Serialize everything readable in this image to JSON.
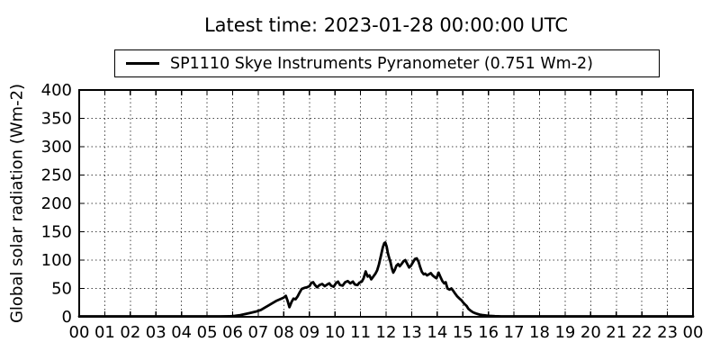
{
  "header": {
    "title": "Latest time: 2023-01-28 00:00:00 UTC"
  },
  "legend": {
    "label": "SP1110 Skye Instruments Pyranometer (0.751 Wm-2)",
    "line_color": "#000000",
    "position": "upper center, above axes"
  },
  "colors": {
    "background": "#ffffff",
    "text": "#000000",
    "line": "#000000",
    "grid": "#444444",
    "spine": "#000000"
  },
  "chart_data": {
    "type": "line",
    "title": "Latest time: 2023-01-28 00:00:00 UTC",
    "xlabel": "",
    "ylabel": "Global solar radiation (Wm-2)",
    "xlim": [
      0,
      24
    ],
    "ylim": [
      0,
      400
    ],
    "x_ticks": [
      0,
      1,
      2,
      3,
      4,
      5,
      6,
      7,
      8,
      9,
      10,
      11,
      12,
      13,
      14,
      15,
      16,
      17,
      18,
      19,
      20,
      21,
      22,
      23,
      24
    ],
    "x_tick_labels": [
      "00",
      "01",
      "02",
      "03",
      "04",
      "05",
      "06",
      "07",
      "08",
      "09",
      "10",
      "11",
      "12",
      "13",
      "14",
      "15",
      "16",
      "17",
      "18",
      "19",
      "20",
      "21",
      "22",
      "23",
      "00"
    ],
    "y_ticks": [
      0,
      50,
      100,
      150,
      200,
      250,
      300,
      350,
      400
    ],
    "grid": true,
    "grid_style": "dotted",
    "tick_direction": "in",
    "legend_position": "above plot, centered",
    "series": [
      {
        "name": "SP1110 Skye Instruments Pyranometer (0.751 Wm-2)",
        "latest_value_wm2": 0.751,
        "color": "#000000",
        "points_hour_value": [
          [
            0,
            0.75
          ],
          [
            0.5,
            0.75
          ],
          [
            1,
            0.75
          ],
          [
            1.5,
            0.75
          ],
          [
            2,
            0.75
          ],
          [
            2.5,
            0.75
          ],
          [
            3,
            0.75
          ],
          [
            3.5,
            0.75
          ],
          [
            4,
            0.75
          ],
          [
            4.5,
            0.75
          ],
          [
            5,
            0.75
          ],
          [
            5.5,
            0.8
          ],
          [
            5.9,
            1
          ],
          [
            6.1,
            1.8
          ],
          [
            6.3,
            3
          ],
          [
            6.5,
            5
          ],
          [
            6.7,
            7
          ],
          [
            6.9,
            9
          ],
          [
            7.1,
            12
          ],
          [
            7.25,
            16
          ],
          [
            7.4,
            20
          ],
          [
            7.55,
            24
          ],
          [
            7.7,
            28
          ],
          [
            7.85,
            31
          ],
          [
            8.0,
            34
          ],
          [
            8.08,
            37
          ],
          [
            8.15,
            28
          ],
          [
            8.22,
            17
          ],
          [
            8.3,
            26
          ],
          [
            8.38,
            32
          ],
          [
            8.46,
            31
          ],
          [
            8.54,
            36
          ],
          [
            8.62,
            43
          ],
          [
            8.7,
            49
          ],
          [
            8.8,
            51
          ],
          [
            8.9,
            52
          ],
          [
            9.0,
            54
          ],
          [
            9.08,
            60
          ],
          [
            9.15,
            61
          ],
          [
            9.22,
            56
          ],
          [
            9.3,
            52
          ],
          [
            9.4,
            56
          ],
          [
            9.5,
            58
          ],
          [
            9.6,
            54
          ],
          [
            9.7,
            57
          ],
          [
            9.78,
            59
          ],
          [
            9.85,
            55
          ],
          [
            9.95,
            53
          ],
          [
            10.05,
            60
          ],
          [
            10.12,
            62
          ],
          [
            10.2,
            56
          ],
          [
            10.3,
            55
          ],
          [
            10.4,
            61
          ],
          [
            10.5,
            63
          ],
          [
            10.6,
            59
          ],
          [
            10.7,
            62
          ],
          [
            10.78,
            57
          ],
          [
            10.88,
            56
          ],
          [
            10.95,
            60
          ],
          [
            11.05,
            62
          ],
          [
            11.12,
            68
          ],
          [
            11.2,
            80
          ],
          [
            11.28,
            71
          ],
          [
            11.35,
            73
          ],
          [
            11.42,
            66
          ],
          [
            11.5,
            71
          ],
          [
            11.58,
            76
          ],
          [
            11.65,
            82
          ],
          [
            11.72,
            92
          ],
          [
            11.8,
            108
          ],
          [
            11.87,
            122
          ],
          [
            11.93,
            130
          ],
          [
            11.97,
            131
          ],
          [
            12.02,
            124
          ],
          [
            12.07,
            112
          ],
          [
            12.12,
            104
          ],
          [
            12.17,
            97
          ],
          [
            12.22,
            86
          ],
          [
            12.28,
            78
          ],
          [
            12.34,
            83
          ],
          [
            12.4,
            90
          ],
          [
            12.47,
            93
          ],
          [
            12.53,
            89
          ],
          [
            12.6,
            93
          ],
          [
            12.68,
            98
          ],
          [
            12.75,
            100
          ],
          [
            12.82,
            94
          ],
          [
            12.9,
            87
          ],
          [
            12.97,
            90
          ],
          [
            13.05,
            96
          ],
          [
            13.13,
            102
          ],
          [
            13.2,
            103
          ],
          [
            13.27,
            97
          ],
          [
            13.33,
            88
          ],
          [
            13.4,
            79
          ],
          [
            13.47,
            75
          ],
          [
            13.53,
            76
          ],
          [
            13.6,
            73
          ],
          [
            13.67,
            75
          ],
          [
            13.75,
            77
          ],
          [
            13.82,
            73
          ],
          [
            13.9,
            70
          ],
          [
            13.97,
            68
          ],
          [
            14.05,
            78
          ],
          [
            14.12,
            71
          ],
          [
            14.2,
            63
          ],
          [
            14.27,
            59
          ],
          [
            14.33,
            61
          ],
          [
            14.4,
            50
          ],
          [
            14.48,
            48
          ],
          [
            14.55,
            50
          ],
          [
            14.62,
            46
          ],
          [
            14.7,
            41
          ],
          [
            14.78,
            36
          ],
          [
            14.87,
            32
          ],
          [
            14.95,
            29
          ],
          [
            15.02,
            25
          ],
          [
            15.08,
            22
          ],
          [
            15.15,
            19
          ],
          [
            15.22,
            14
          ],
          [
            15.3,
            11
          ],
          [
            15.4,
            8
          ],
          [
            15.5,
            6
          ],
          [
            15.65,
            4
          ],
          [
            15.8,
            2.8
          ],
          [
            16.0,
            1.8
          ],
          [
            16.25,
            1.1
          ],
          [
            16.5,
            0.8
          ],
          [
            17,
            0.75
          ],
          [
            17.5,
            0.75
          ],
          [
            18,
            0.75
          ],
          [
            18.5,
            0.75
          ],
          [
            19,
            0.75
          ],
          [
            19.5,
            0.75
          ],
          [
            20,
            0.75
          ],
          [
            20.5,
            0.75
          ],
          [
            21,
            0.75
          ],
          [
            21.5,
            0.75
          ],
          [
            22,
            0.75
          ],
          [
            22.5,
            0.75
          ],
          [
            23,
            0.75
          ],
          [
            23.5,
            0.75
          ],
          [
            24,
            0.75
          ]
        ]
      }
    ]
  }
}
